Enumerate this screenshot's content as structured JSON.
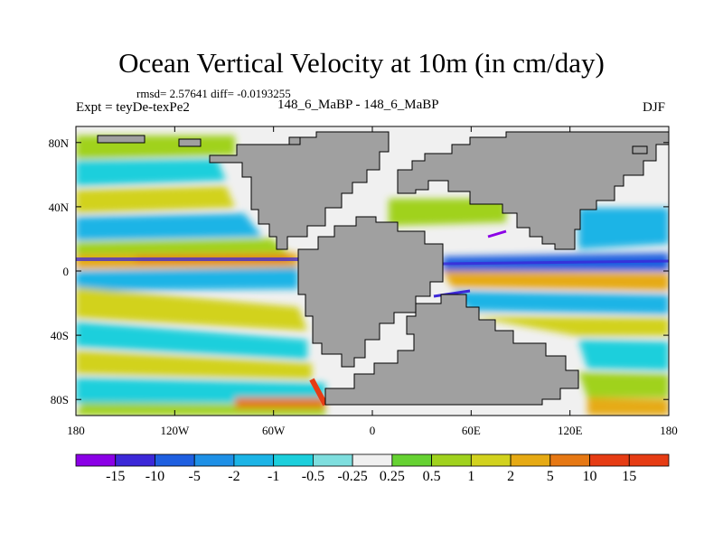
{
  "title": "Ocean Vertical Velocity at 10m (in cm/day)",
  "stats": "rmsd= 2.57641  diff= -0.0193255",
  "left_label": "Expt = teyDe-texPe2",
  "center_label": "148_6_MaBP - 148_6_MaBP",
  "right_label": "DJF",
  "colors": {
    "land": "#a0a0a0",
    "blank": "#f0f0f0",
    "frame": "#000000"
  },
  "chart_data": {
    "type": "heatmap",
    "title": "Ocean Vertical Velocity at 10m (in cm/day)",
    "variable": "Ocean vertical velocity at 10m",
    "units": "cm/day",
    "projection": "cylindrical equidistant",
    "x_range": [
      -180,
      180
    ],
    "y_range": [
      -90,
      90
    ],
    "x_ticks": [
      {
        "value": -180,
        "label": "180"
      },
      {
        "value": -120,
        "label": "120W"
      },
      {
        "value": -60,
        "label": "60W"
      },
      {
        "value": 0,
        "label": "0"
      },
      {
        "value": 60,
        "label": "60E"
      },
      {
        "value": 120,
        "label": "120E"
      },
      {
        "value": 180,
        "label": "180"
      }
    ],
    "y_ticks": [
      {
        "value": 80,
        "label": "80N"
      },
      {
        "value": 40,
        "label": "40N"
      },
      {
        "value": 0,
        "label": "0"
      },
      {
        "value": -40,
        "label": "40S"
      },
      {
        "value": -80,
        "label": "80S"
      }
    ],
    "colorbar": {
      "levels": [
        "-15",
        "-10",
        "-5",
        "-2",
        "-1",
        "-0.5",
        "-0.25",
        "0.25",
        "0.5",
        "1",
        "2",
        "5",
        "10",
        "15"
      ],
      "colors": [
        "#8b00e6",
        "#3c28d8",
        "#1f5fe0",
        "#1e90e6",
        "#1cb4e6",
        "#1ccfdc",
        "#7edede",
        "#f0f0f0",
        "#66d232",
        "#a0d21e",
        "#d2d21e",
        "#e6aa14",
        "#e67814",
        "#e63c14"
      ]
    }
  }
}
